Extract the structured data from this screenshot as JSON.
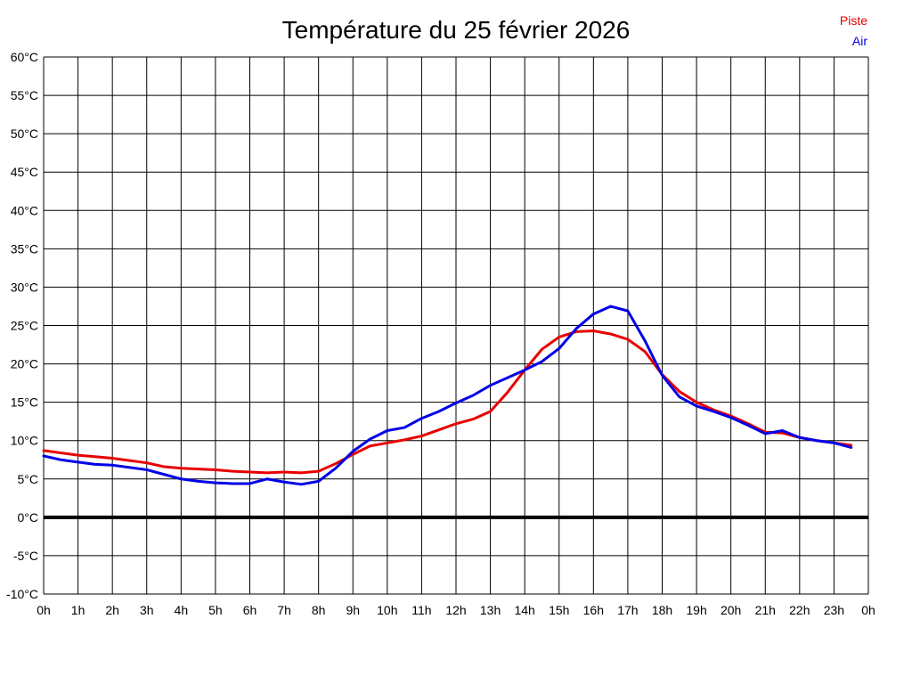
{
  "title": "Température du 25 février 2026",
  "legend": [
    {
      "label": "Piste",
      "color": "#e80000"
    },
    {
      "label": "Air",
      "color": "#0000e8"
    }
  ],
  "colors": {
    "grid": "#000000",
    "zero_line": "#000000",
    "background": "#ffffff",
    "tick_text": "#000000"
  },
  "chart_data": {
    "type": "line",
    "title": "Température du 25 février 2026",
    "xlabel": "",
    "ylabel": "",
    "grid": true,
    "legend_position": "top-right-outside",
    "xlim_hours": [
      0,
      24
    ],
    "ylim": [
      -10,
      60
    ],
    "ytick_step": 5,
    "zero_line_at": 0,
    "ytick_labels": [
      "60°C",
      "55°C",
      "50°C",
      "45°C",
      "40°C",
      "35°C",
      "30°C",
      "25°C",
      "20°C",
      "15°C",
      "10°C",
      "5°C",
      "0°C",
      "-5°C",
      "-10°C"
    ],
    "xtick_labels": [
      "0h",
      "1h",
      "2h",
      "3h",
      "4h",
      "5h",
      "6h",
      "7h",
      "8h",
      "9h",
      "10h",
      "11h",
      "12h",
      "13h",
      "14h",
      "15h",
      "16h",
      "17h",
      "18h",
      "19h",
      "20h",
      "21h",
      "22h",
      "23h",
      "0h"
    ],
    "x_hours": [
      0,
      0.5,
      1,
      1.5,
      2,
      2.5,
      3,
      3.5,
      4,
      4.5,
      5,
      5.5,
      6,
      6.5,
      7,
      7.5,
      8,
      8.5,
      9,
      9.5,
      10,
      10.5,
      11,
      11.5,
      12,
      12.5,
      13,
      13.5,
      14,
      14.5,
      15,
      15.5,
      16,
      16.5,
      17,
      17.5,
      18,
      18.5,
      19,
      19.5,
      20,
      20.5,
      21,
      21.5,
      22,
      22.5,
      23,
      23.5
    ],
    "series": [
      {
        "name": "Piste",
        "color": "#e80000",
        "values": [
          8.7,
          8.4,
          8.1,
          7.9,
          7.7,
          7.4,
          7.1,
          6.6,
          6.4,
          6.3,
          6.2,
          6.0,
          5.9,
          5.8,
          5.9,
          5.8,
          6.0,
          7.0,
          8.2,
          9.3,
          9.7,
          10.1,
          10.6,
          11.4,
          12.2,
          12.8,
          13.8,
          16.3,
          19.2,
          21.9,
          23.5,
          24.2,
          24.3,
          23.9,
          23.2,
          21.6,
          18.6,
          16.4,
          15.0,
          14.0,
          13.2,
          12.2,
          11.1,
          11.0,
          10.4,
          10.0,
          9.7,
          9.4
        ]
      },
      {
        "name": "Air",
        "color": "#0000e8",
        "values": [
          8.0,
          7.5,
          7.2,
          6.9,
          6.8,
          6.5,
          6.2,
          5.6,
          5.0,
          4.7,
          4.5,
          4.4,
          4.4,
          5.0,
          4.6,
          4.3,
          4.7,
          6.4,
          8.6,
          10.2,
          11.3,
          11.7,
          12.9,
          13.8,
          14.9,
          15.9,
          17.2,
          18.2,
          19.2,
          20.3,
          22.0,
          24.6,
          26.5,
          27.5,
          26.9,
          23.0,
          18.5,
          15.7,
          14.5,
          13.8,
          13.0,
          12.0,
          10.9,
          11.3,
          10.4,
          10.0,
          9.7,
          9.1
        ]
      }
    ]
  }
}
